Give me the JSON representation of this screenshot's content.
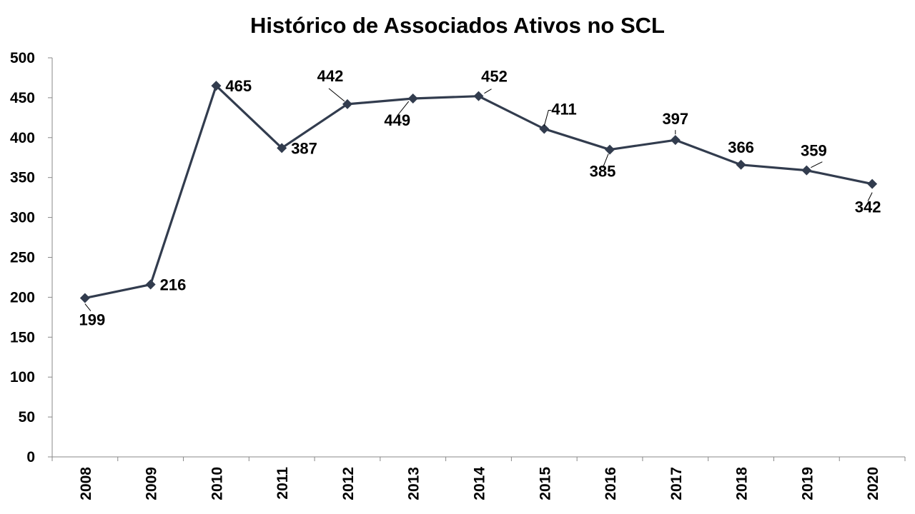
{
  "chart_data": {
    "type": "line",
    "title": "Histórico de Associados Ativos no SCL",
    "categories": [
      "2008",
      "2009",
      "2010",
      "2011",
      "2012",
      "2013",
      "2014",
      "2015",
      "2016",
      "2017",
      "2018",
      "2019",
      "2020"
    ],
    "series": [
      {
        "values": [
          199,
          216,
          465,
          387,
          442,
          449,
          452,
          411,
          385,
          397,
          366,
          359,
          342
        ],
        "color": "#323c4e",
        "marker": "diamond"
      }
    ],
    "y_ticks": [
      "0",
      "50",
      "100",
      "150",
      "200",
      "250",
      "300",
      "350",
      "400",
      "450",
      "500"
    ],
    "ylim": [
      0,
      500
    ],
    "xlabel": "",
    "ylabel": "",
    "grid": false,
    "legend": "none"
  }
}
